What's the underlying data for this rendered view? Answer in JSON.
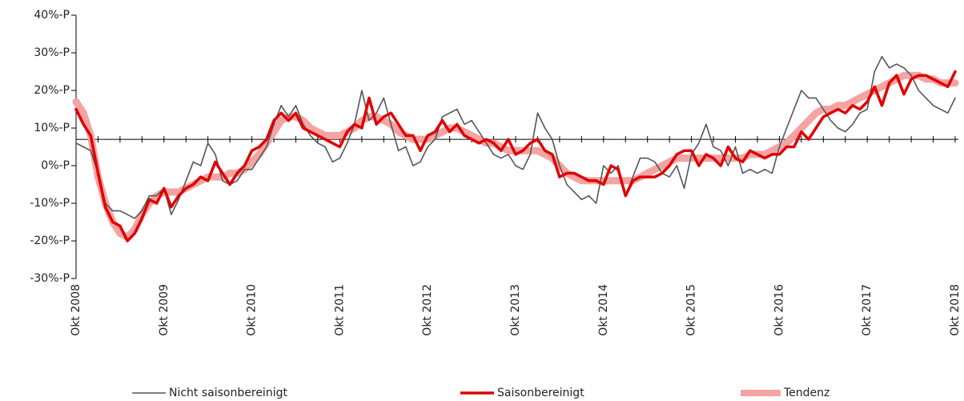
{
  "chart_data": {
    "type": "line",
    "categories": [
      "Okt 2008",
      null,
      null,
      null,
      null,
      null,
      null,
      null,
      null,
      null,
      null,
      null,
      "Okt 2009",
      null,
      null,
      null,
      null,
      null,
      null,
      null,
      null,
      null,
      null,
      null,
      "Okt 2010",
      null,
      null,
      null,
      null,
      null,
      null,
      null,
      null,
      null,
      null,
      null,
      "Okt 2011",
      null,
      null,
      null,
      null,
      null,
      null,
      null,
      null,
      null,
      null,
      null,
      "Okt 2012",
      null,
      null,
      null,
      null,
      null,
      null,
      null,
      null,
      null,
      null,
      null,
      "Okt 2013",
      null,
      null,
      null,
      null,
      null,
      null,
      null,
      null,
      null,
      null,
      null,
      "Okt 2014",
      null,
      null,
      null,
      null,
      null,
      null,
      null,
      null,
      null,
      null,
      null,
      "Okt 2015",
      null,
      null,
      null,
      null,
      null,
      null,
      null,
      null,
      null,
      null,
      null,
      "Okt 2016",
      null,
      null,
      null,
      null,
      null,
      null,
      null,
      null,
      null,
      null,
      null,
      "Okt 2017",
      null,
      null,
      null,
      null,
      null,
      null,
      null,
      null,
      null,
      null,
      null,
      "Okt 2018"
    ],
    "series": [
      {
        "name": "Tendenz",
        "color": "#f5a3a3",
        "width": 9,
        "values": [
          17,
          14,
          8,
          -3,
          -10,
          -15,
          -18,
          -19,
          -17,
          -13,
          -10,
          -8,
          -7,
          -7,
          -7,
          -6,
          -5,
          -4,
          -3,
          -3,
          -3,
          -2,
          -2,
          -1,
          1,
          3,
          6,
          9,
          12,
          13,
          13,
          12,
          10,
          9,
          8,
          8,
          8,
          9,
          10,
          12,
          13,
          13,
          12,
          11,
          9,
          8,
          7,
          7,
          7,
          8,
          9,
          10,
          10,
          9,
          8,
          7,
          6,
          6,
          5,
          4,
          4,
          4,
          4,
          4,
          3,
          2,
          0,
          -2,
          -3,
          -4,
          -4,
          -4,
          -4,
          -4,
          -4,
          -4,
          -4,
          -3,
          -2,
          -1,
          0,
          1,
          2,
          2,
          2,
          2,
          2,
          2,
          2,
          2,
          2,
          2,
          3,
          3,
          3,
          4,
          5,
          6,
          8,
          10,
          12,
          14,
          15,
          15,
          16,
          16,
          17,
          18,
          19,
          20,
          21,
          22,
          23,
          24,
          24,
          24,
          23,
          23,
          22,
          22,
          22
        ]
      },
      {
        "name": "Nicht saisonbereinigt",
        "color": "#555555",
        "width": 1.6,
        "values": [
          6,
          5,
          4,
          -2,
          -10,
          -12,
          -12,
          -13,
          -14,
          -12,
          -8,
          -8,
          -6,
          -13,
          -9,
          -4,
          1,
          0,
          6,
          3,
          -4,
          -5,
          -4,
          -1,
          -1,
          2,
          5,
          11,
          16,
          13,
          16,
          11,
          8,
          6,
          5,
          1,
          2,
          6,
          11,
          20,
          12,
          14,
          18,
          11,
          4,
          5,
          0,
          1,
          5,
          7,
          13,
          14,
          15,
          11,
          12,
          9,
          6,
          3,
          2,
          3,
          0,
          -1,
          3,
          14,
          10,
          7,
          0,
          -5,
          -7,
          -9,
          -8,
          -10,
          0,
          -2,
          0,
          -8,
          -3,
          2,
          2,
          1,
          -2,
          -3,
          0,
          -6,
          3,
          6,
          11,
          5,
          4,
          0,
          5,
          -2,
          -1,
          -2,
          -1,
          -2,
          5,
          10,
          15,
          20,
          18,
          18,
          15,
          12,
          10,
          9,
          11,
          14,
          15,
          25,
          29,
          26,
          27,
          26,
          24,
          20,
          18,
          16,
          15,
          14,
          18
        ]
      },
      {
        "name": "Saisonbereinigt",
        "color": "#e00000",
        "width": 3.5,
        "values": [
          15,
          11,
          8,
          -2,
          -11,
          -15,
          -16,
          -20,
          -18,
          -14,
          -9,
          -10,
          -6,
          -11,
          -8,
          -6,
          -5,
          -3,
          -4,
          1,
          -2,
          -5,
          -2,
          0,
          4,
          5,
          7,
          12,
          14,
          12,
          14,
          10,
          9,
          8,
          7,
          6,
          5,
          9,
          11,
          10,
          18,
          11,
          13,
          14,
          11,
          8,
          8,
          4,
          8,
          9,
          12,
          9,
          11,
          8,
          7,
          6,
          7,
          6,
          4,
          7,
          3,
          4,
          6,
          7,
          4,
          3,
          -3,
          -2,
          -2,
          -3,
          -4,
          -4,
          -5,
          0,
          -1,
          -8,
          -4,
          -3,
          -3,
          -3,
          -2,
          0,
          3,
          4,
          4,
          0,
          3,
          2,
          0,
          5,
          2,
          1,
          4,
          3,
          2,
          3,
          3,
          5,
          5,
          9,
          7,
          10,
          13,
          14,
          15,
          14,
          16,
          15,
          17,
          21,
          16,
          22,
          24,
          19,
          23,
          24,
          24,
          23,
          22,
          21,
          25
        ]
      }
    ],
    "ylim": [
      -30,
      40
    ],
    "yticks": [
      {
        "value": -30,
        "label": "-30%-P"
      },
      {
        "value": -20,
        "label": "-20%-P"
      },
      {
        "value": -10,
        "label": "-10%-P"
      },
      {
        "value": 0,
        "label": "0%-P"
      },
      {
        "value": 10,
        "label": "10%-P"
      },
      {
        "value": 20,
        "label": "20%-P"
      },
      {
        "value": 30,
        "label": "30%-P"
      },
      {
        "value": 40,
        "label": "40%-P"
      }
    ],
    "x_axis_crosses": 7,
    "legend": "bottom"
  }
}
